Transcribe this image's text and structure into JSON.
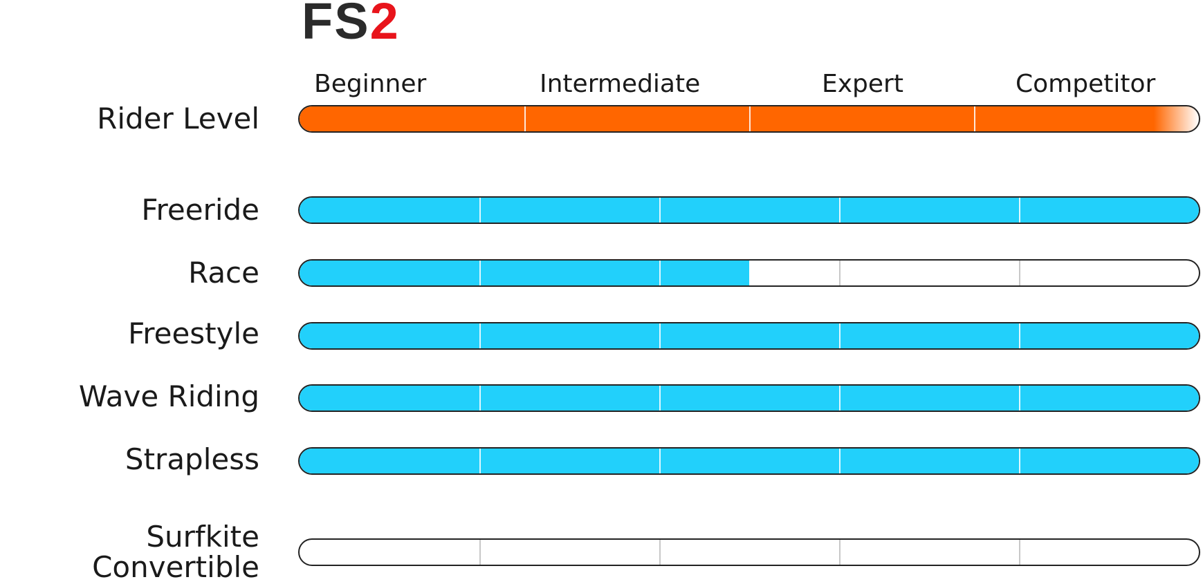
{
  "title": {
    "prefix": "FS",
    "number": "2"
  },
  "colors": {
    "logo_dark": "#2b2b2b",
    "logo_red": "#e8141b",
    "orange": "#ff6600",
    "cyan": "#22d0fb"
  },
  "chart_data": {
    "type": "bar",
    "rider_level": {
      "label": "Rider Level",
      "levels": [
        "Beginner",
        "Intermediate",
        "Expert",
        "Competitor"
      ],
      "value": 3.8,
      "max": 4,
      "fade_end": true
    },
    "disciplines": {
      "max": 5,
      "rows": [
        {
          "label": "Freeride",
          "value": 5
        },
        {
          "label": "Race",
          "value": 2.5
        },
        {
          "label": "Freestyle",
          "value": 5
        },
        {
          "label": "Wave Riding",
          "value": 5
        },
        {
          "label": "Strapless",
          "value": 5
        },
        {
          "label": "Surfkite Convertible",
          "value": 0
        }
      ]
    }
  }
}
